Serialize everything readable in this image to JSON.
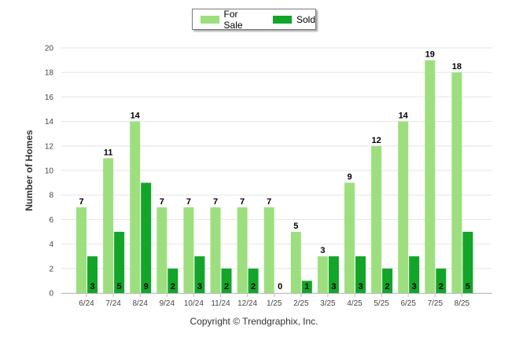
{
  "legend": {
    "items": [
      {
        "label": "For Sale",
        "color": "#9ddf7e"
      },
      {
        "label": "Sold",
        "color": "#12a52a"
      }
    ]
  },
  "y_axis_title": "Number of Homes",
  "copyright": "Copyright © Trendgraphix, Inc.",
  "chart_data": {
    "type": "bar",
    "categories": [
      "6/24",
      "7/24",
      "8/24",
      "9/24",
      "10/24",
      "11/24",
      "12/24",
      "1/25",
      "2/25",
      "3/25",
      "4/25",
      "5/25",
      "6/25",
      "7/25",
      "8/25"
    ],
    "series": [
      {
        "name": "For Sale",
        "color": "#9ddf7e",
        "values": [
          7,
          11,
          14,
          7,
          7,
          7,
          7,
          7,
          5,
          3,
          9,
          12,
          14,
          19,
          18
        ]
      },
      {
        "name": "Sold",
        "color": "#12a52a",
        "values": [
          3,
          5,
          9,
          2,
          3,
          2,
          2,
          0,
          1,
          3,
          3,
          2,
          3,
          2,
          5
        ]
      }
    ],
    "ylabel": "Number of Homes",
    "ylim": [
      0,
      20
    ],
    "yticks": [
      0,
      2,
      4,
      6,
      8,
      10,
      12,
      14,
      16,
      18,
      20
    ],
    "grid": true,
    "legend_position": "top-center"
  }
}
